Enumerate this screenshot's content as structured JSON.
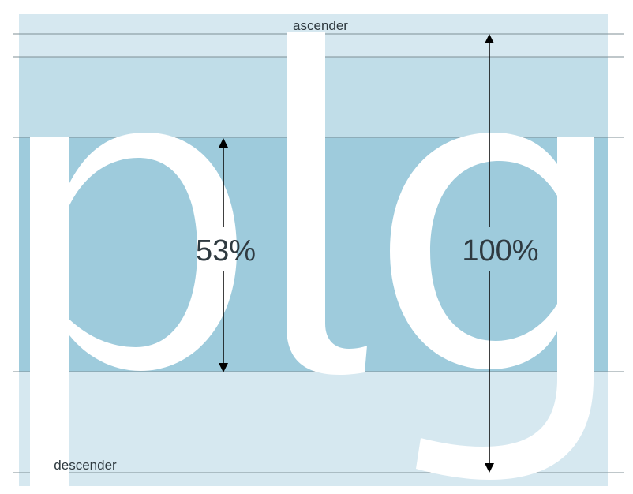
{
  "colors": {
    "band_light": "#d6e8f0",
    "band_mid": "#c0dde8",
    "band_dark": "#9ecbdc",
    "glyph": "#ffffff",
    "guide_line": "#7f8f96",
    "label_text": "#2f3a40",
    "arrow": "#000000"
  },
  "labels": {
    "ascender": "ascender",
    "descender": "descender"
  },
  "measurements": {
    "x_height_ratio": "53%",
    "full_height_ratio": "100%"
  }
}
